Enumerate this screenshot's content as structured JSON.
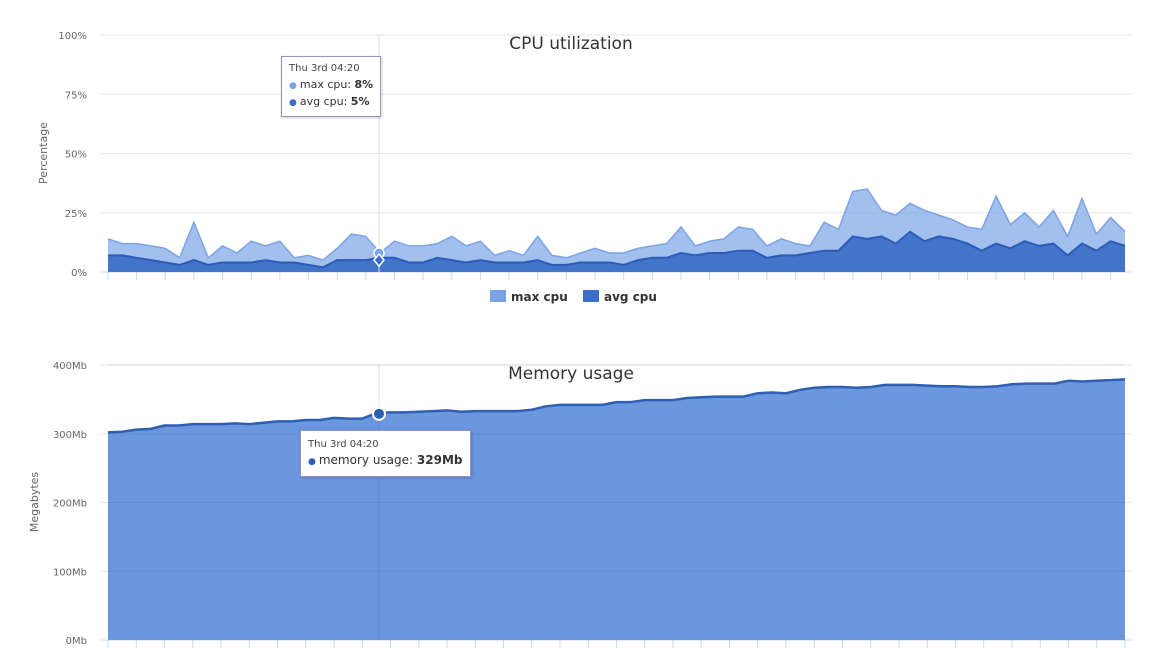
{
  "colors": {
    "max_cpu": "#7ba4e6",
    "avg_cpu": "#3b6ec7",
    "memory_fill": "#6a97de",
    "memory_line": "#2f5fb3"
  },
  "chart_data": [
    {
      "type": "area",
      "title": "CPU utilization",
      "ylabel": "Percentage",
      "y_ticks": [
        "0%",
        "25%",
        "50%",
        "75%",
        "100%"
      ],
      "ylim": [
        0,
        100
      ],
      "grid": true,
      "legend_position": "bottom-center",
      "series": [
        {
          "name": "max cpu",
          "values": [
            14,
            12,
            12,
            11,
            10,
            6,
            21,
            6,
            11,
            8,
            13,
            11,
            13,
            6,
            7,
            5,
            10,
            16,
            15,
            8,
            13,
            11,
            11,
            12,
            15,
            11,
            13,
            7,
            9,
            7,
            15,
            7,
            6,
            8,
            10,
            8,
            8,
            10,
            11,
            12,
            19,
            11,
            13,
            14,
            19,
            18,
            11,
            14,
            12,
            11,
            21,
            18,
            34,
            35,
            26,
            24,
            29,
            26,
            24,
            22,
            19,
            18,
            32,
            20,
            25,
            19,
            26,
            15,
            31,
            16,
            23,
            17
          ],
          "stacking": "overlap"
        },
        {
          "name": "avg cpu",
          "values": [
            7,
            7,
            6,
            5,
            4,
            3,
            5,
            3,
            4,
            4,
            4,
            5,
            4,
            4,
            3,
            2,
            5,
            5,
            5,
            6,
            6,
            4,
            4,
            6,
            5,
            4,
            5,
            4,
            4,
            4,
            5,
            3,
            3,
            4,
            4,
            4,
            3,
            5,
            6,
            6,
            8,
            7,
            8,
            8,
            9,
            9,
            6,
            7,
            7,
            8,
            9,
            9,
            15,
            14,
            15,
            12,
            17,
            13,
            15,
            14,
            12,
            9,
            12,
            10,
            13,
            11,
            12,
            7,
            12,
            9,
            13,
            11
          ]
        }
      ],
      "tooltip": {
        "header": "Thu 3rd 04:20",
        "rows": [
          {
            "series": "max cpu",
            "label": "max cpu: ",
            "value": "8%"
          },
          {
            "series": "avg cpu",
            "label": "avg cpu: ",
            "value": "5%"
          }
        ]
      }
    },
    {
      "type": "area",
      "title": "Memory usage",
      "ylabel": "Megabytes",
      "y_ticks": [
        "0Mb",
        "100Mb",
        "200Mb",
        "300Mb",
        "400Mb"
      ],
      "ylim": [
        0,
        400
      ],
      "grid": true,
      "series": [
        {
          "name": "memory usage",
          "values": [
            302,
            303,
            306,
            307,
            312,
            312,
            314,
            314,
            314,
            315,
            314,
            316,
            318,
            318,
            320,
            320,
            323,
            322,
            322,
            330,
            331,
            331,
            332,
            333,
            334,
            332,
            333,
            333,
            333,
            333,
            335,
            340,
            342,
            342,
            342,
            342,
            346,
            346,
            349,
            349,
            349,
            352,
            353,
            354,
            354,
            354,
            359,
            360,
            359,
            364,
            367,
            368,
            368,
            367,
            368,
            371,
            371,
            371,
            370,
            369,
            369,
            368,
            368,
            369,
            372,
            373,
            373,
            373,
            377,
            376,
            377,
            378,
            379
          ]
        }
      ],
      "tooltip": {
        "header": "Thu 3rd 04:20",
        "rows": [
          {
            "series": "memory usage",
            "label": "memory usage: ",
            "value": "329Mb"
          }
        ]
      }
    }
  ]
}
